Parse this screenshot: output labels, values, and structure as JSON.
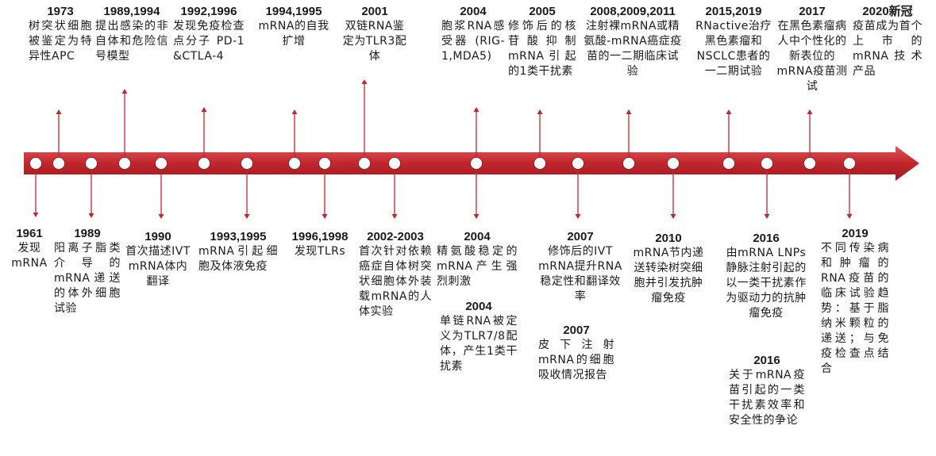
{
  "colors": {
    "band": "#c0272d",
    "node": "#ffffff",
    "text": "#1a1a1a"
  },
  "events": [
    {
      "id": "1973",
      "year": "1973",
      "text": "树突状细胞被鉴定为特异性APC",
      "pos": "top"
    },
    {
      "id": "1989-1994",
      "year": "1989,1994",
      "text": "提出感染的非自体和危险信号模型",
      "pos": "top"
    },
    {
      "id": "1992-1996",
      "year": "1992,1996",
      "text": "发现免疫检查点分子 PD-1 &CTLA-4",
      "pos": "top"
    },
    {
      "id": "1994-1995",
      "year": "1994,1995",
      "text": "mRNA的自我扩增",
      "pos": "top"
    },
    {
      "id": "2001",
      "year": "2001",
      "text": "双链RNA鉴定为TLR3配体",
      "pos": "top"
    },
    {
      "id": "2004-top",
      "year": "2004",
      "text": "胞浆RNA感受器 (RIG-1,MDA5)",
      "pos": "top"
    },
    {
      "id": "2005",
      "year": "2005",
      "text": "修饰后的核苷酸抑制mRNA引起的1类干扰素",
      "pos": "top"
    },
    {
      "id": "2008-2011",
      "year": "2008,2009,2011",
      "text": "注射裸mRNA或精氨酸-mRNA癌症疫苗的一二期临床试验",
      "pos": "top"
    },
    {
      "id": "2015-2019",
      "year": "2015,2019",
      "text": "RNactive治疗黑色素瘤和NSCLC患者的一二期试验",
      "pos": "top"
    },
    {
      "id": "2017",
      "year": "2017",
      "text": "在黑色素瘤病人中个性化的新表位的mRNA疫苗测试",
      "pos": "top"
    },
    {
      "id": "2020",
      "year": "2020新冠",
      "text": "疫苗成为首个上市的mRNA技术产品",
      "pos": "top"
    },
    {
      "id": "1961",
      "year": "1961",
      "text": "发现mRNA",
      "pos": "bottom"
    },
    {
      "id": "1989",
      "year": "1989",
      "text": "阳离子脂类介导的mRNA递送的体外细胞试验",
      "pos": "bottom"
    },
    {
      "id": "1990",
      "year": "1990",
      "text": "首次描述IVT mRNA体内翻译",
      "pos": "bottom"
    },
    {
      "id": "1993-1995",
      "year": "1993,1995",
      "text": "mRNA引起细胞及体液免疫",
      "pos": "bottom"
    },
    {
      "id": "1996-1998",
      "year": "1996,1998",
      "text": "发现TLRs",
      "pos": "bottom"
    },
    {
      "id": "2002-2003",
      "year": "2002-2003",
      "text": "首次针对依赖癌症自体树突状细胞体外装载mRNA的人体实验",
      "pos": "bottom"
    },
    {
      "id": "2004-b1",
      "year": "2004",
      "text": "精氨酸稳定的mRNA产生强烈刺激",
      "pos": "bottom"
    },
    {
      "id": "2004-b2",
      "year": "2004",
      "text": "单链RNA被定义为TLR7/8配体，产生1类干扰素",
      "pos": "bottom"
    },
    {
      "id": "2007-a",
      "year": "2007",
      "text": "修饰后的IVT mRNA提升RNA稳定性和翻译效率",
      "pos": "bottom"
    },
    {
      "id": "2007-b",
      "year": "2007",
      "text": "皮下注射mRNA的细胞吸收情况报告",
      "pos": "bottom"
    },
    {
      "id": "2010",
      "year": "2010",
      "text": "mRNA节内递送转染树突细胞并引发抗肿瘤免疫",
      "pos": "bottom"
    },
    {
      "id": "2016-a",
      "year": "2016",
      "text": "由mRNA LNPs静脉注射引起的以一类干扰素作为驱动力的抗肿瘤免疫",
      "pos": "bottom"
    },
    {
      "id": "2016-b",
      "year": "2016",
      "text": "关于mRNA疫苗引起的一类干扰素效率和安全性的争论",
      "pos": "bottom"
    },
    {
      "id": "2019",
      "year": "2019",
      "text": "不同传染病和肿瘤的RNA疫苗的临床试验趋势：基于脂纳米颗粒的递送；与免疫检查点结合",
      "pos": "bottom"
    }
  ]
}
